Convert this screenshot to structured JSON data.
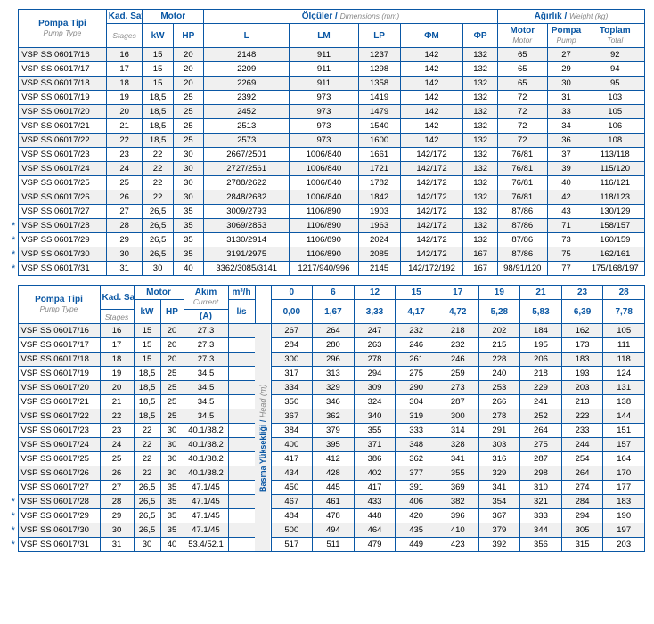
{
  "colors": {
    "brand": "#0a57a4",
    "zebra": "#f0f0f0",
    "muted": "#888888"
  },
  "table1": {
    "headers": {
      "pump": {
        "tr": "Pompa Tipi",
        "en": "Pump Type"
      },
      "stages": {
        "tr": "Kad. Sayısı",
        "en": "Stages"
      },
      "motor": "Motor",
      "kw": "kW",
      "hp": "HP",
      "dims": {
        "tr": "Ölçüler",
        "en": "Dimensions (mm)"
      },
      "L": "L",
      "LM": "LM",
      "LP": "LP",
      "FM": "ΦM",
      "FP": "ΦP",
      "weight": {
        "tr": "Ağırlık",
        "en": "Weight (kg)"
      },
      "wmotor": {
        "tr": "Motor",
        "en": "Motor"
      },
      "wpump": {
        "tr": "Pompa",
        "en": "Pump"
      },
      "wtot": {
        "tr": "Toplam",
        "en": "Total"
      }
    },
    "rows": [
      {
        "star": "",
        "model": "VSP SS 06017/16",
        "st": "16",
        "kw": "15",
        "hp": "20",
        "L": "2148",
        "LM": "911",
        "LP": "1237",
        "FM": "142",
        "FP": "132",
        "wm": "65",
        "wp": "27",
        "wt": "92"
      },
      {
        "star": "",
        "model": "VSP SS 06017/17",
        "st": "17",
        "kw": "15",
        "hp": "20",
        "L": "2209",
        "LM": "911",
        "LP": "1298",
        "FM": "142",
        "FP": "132",
        "wm": "65",
        "wp": "29",
        "wt": "94"
      },
      {
        "star": "",
        "model": "VSP SS 06017/18",
        "st": "18",
        "kw": "15",
        "hp": "20",
        "L": "2269",
        "LM": "911",
        "LP": "1358",
        "FM": "142",
        "FP": "132",
        "wm": "65",
        "wp": "30",
        "wt": "95"
      },
      {
        "star": "",
        "model": "VSP SS 06017/19",
        "st": "19",
        "kw": "18,5",
        "hp": "25",
        "L": "2392",
        "LM": "973",
        "LP": "1419",
        "FM": "142",
        "FP": "132",
        "wm": "72",
        "wp": "31",
        "wt": "103"
      },
      {
        "star": "",
        "model": "VSP SS 06017/20",
        "st": "20",
        "kw": "18,5",
        "hp": "25",
        "L": "2452",
        "LM": "973",
        "LP": "1479",
        "FM": "142",
        "FP": "132",
        "wm": "72",
        "wp": "33",
        "wt": "105"
      },
      {
        "star": "",
        "model": "VSP SS 06017/21",
        "st": "21",
        "kw": "18,5",
        "hp": "25",
        "L": "2513",
        "LM": "973",
        "LP": "1540",
        "FM": "142",
        "FP": "132",
        "wm": "72",
        "wp": "34",
        "wt": "106"
      },
      {
        "star": "",
        "model": "VSP SS 06017/22",
        "st": "22",
        "kw": "18,5",
        "hp": "25",
        "L": "2573",
        "LM": "973",
        "LP": "1600",
        "FM": "142",
        "FP": "132",
        "wm": "72",
        "wp": "36",
        "wt": "108"
      },
      {
        "star": "",
        "model": "VSP SS 06017/23",
        "st": "23",
        "kw": "22",
        "hp": "30",
        "L": "2667/2501",
        "LM": "1006/840",
        "LP": "1661",
        "FM": "142/172",
        "FP": "132",
        "wm": "76/81",
        "wp": "37",
        "wt": "113/118"
      },
      {
        "star": "",
        "model": "VSP SS 06017/24",
        "st": "24",
        "kw": "22",
        "hp": "30",
        "L": "2727/2561",
        "LM": "1006/840",
        "LP": "1721",
        "FM": "142/172",
        "FP": "132",
        "wm": "76/81",
        "wp": "39",
        "wt": "115/120"
      },
      {
        "star": "",
        "model": "VSP SS 06017/25",
        "st": "25",
        "kw": "22",
        "hp": "30",
        "L": "2788/2622",
        "LM": "1006/840",
        "LP": "1782",
        "FM": "142/172",
        "FP": "132",
        "wm": "76/81",
        "wp": "40",
        "wt": "116/121"
      },
      {
        "star": "",
        "model": "VSP SS 06017/26",
        "st": "26",
        "kw": "22",
        "hp": "30",
        "L": "2848/2682",
        "LM": "1006/840",
        "LP": "1842",
        "FM": "142/172",
        "FP": "132",
        "wm": "76/81",
        "wp": "42",
        "wt": "118/123"
      },
      {
        "star": "",
        "model": "VSP SS 06017/27",
        "st": "27",
        "kw": "26,5",
        "hp": "35",
        "L": "3009/2793",
        "LM": "1106/890",
        "LP": "1903",
        "FM": "142/172",
        "FP": "132",
        "wm": "87/86",
        "wp": "43",
        "wt": "130/129"
      },
      {
        "star": "*",
        "model": "VSP SS 06017/28",
        "st": "28",
        "kw": "26,5",
        "hp": "35",
        "L": "3069/2853",
        "LM": "1106/890",
        "LP": "1963",
        "FM": "142/172",
        "FP": "132",
        "wm": "87/86",
        "wp": "71",
        "wt": "158/157"
      },
      {
        "star": "*",
        "model": "VSP SS 06017/29",
        "st": "29",
        "kw": "26,5",
        "hp": "35",
        "L": "3130/2914",
        "LM": "1106/890",
        "LP": "2024",
        "FM": "142/172",
        "FP": "132",
        "wm": "87/86",
        "wp": "73",
        "wt": "160/159"
      },
      {
        "star": "*",
        "model": "VSP SS 06017/30",
        "st": "30",
        "kw": "26,5",
        "hp": "35",
        "L": "3191/2975",
        "LM": "1106/890",
        "LP": "2085",
        "FM": "142/172",
        "FP": "167",
        "wm": "87/86",
        "wp": "75",
        "wt": "162/161"
      },
      {
        "star": "*",
        "model": "VSP SS 06017/31",
        "st": "31",
        "kw": "30",
        "hp": "40",
        "L": "3362/3085/3141",
        "LM": "1217/940/996",
        "LP": "2145",
        "FM": "142/172/192",
        "FP": "167",
        "wm": "98/91/120",
        "wp": "77",
        "wt": "175/168/197"
      }
    ]
  },
  "table2": {
    "headers": {
      "pump": {
        "tr": "Pompa Tipi",
        "en": "Pump Type"
      },
      "stages": {
        "tr": "Kad. Sayısı",
        "en": "Stages"
      },
      "motor": "Motor",
      "kw": "kW",
      "hp": "HP",
      "current": {
        "tr": "Akım",
        "en": "Current",
        "unit": "(A)"
      },
      "m3h": "m³/h",
      "ls": "l/s",
      "head": {
        "tr": "Basma Yüksekliği",
        "en": "Head (m)"
      },
      "cols_m3h": [
        "0",
        "6",
        "12",
        "15",
        "17",
        "19",
        "21",
        "23",
        "28"
      ],
      "cols_ls": [
        "0,00",
        "1,67",
        "3,33",
        "4,17",
        "4,72",
        "5,28",
        "5,83",
        "6,39",
        "7,78"
      ]
    },
    "rows": [
      {
        "star": "",
        "model": "VSP SS 06017/16",
        "st": "16",
        "kw": "15",
        "hp": "20",
        "A": "27.3",
        "v": [
          "267",
          "264",
          "247",
          "232",
          "218",
          "202",
          "184",
          "162",
          "105"
        ]
      },
      {
        "star": "",
        "model": "VSP SS 06017/17",
        "st": "17",
        "kw": "15",
        "hp": "20",
        "A": "27.3",
        "v": [
          "284",
          "280",
          "263",
          "246",
          "232",
          "215",
          "195",
          "173",
          "111"
        ]
      },
      {
        "star": "",
        "model": "VSP SS 06017/18",
        "st": "18",
        "kw": "15",
        "hp": "20",
        "A": "27.3",
        "v": [
          "300",
          "296",
          "278",
          "261",
          "246",
          "228",
          "206",
          "183",
          "118"
        ]
      },
      {
        "star": "",
        "model": "VSP SS 06017/19",
        "st": "19",
        "kw": "18,5",
        "hp": "25",
        "A": "34.5",
        "v": [
          "317",
          "313",
          "294",
          "275",
          "259",
          "240",
          "218",
          "193",
          "124"
        ]
      },
      {
        "star": "",
        "model": "VSP SS 06017/20",
        "st": "20",
        "kw": "18,5",
        "hp": "25",
        "A": "34.5",
        "v": [
          "334",
          "329",
          "309",
          "290",
          "273",
          "253",
          "229",
          "203",
          "131"
        ]
      },
      {
        "star": "",
        "model": "VSP SS 06017/21",
        "st": "21",
        "kw": "18,5",
        "hp": "25",
        "A": "34.5",
        "v": [
          "350",
          "346",
          "324",
          "304",
          "287",
          "266",
          "241",
          "213",
          "138"
        ]
      },
      {
        "star": "",
        "model": "VSP SS 06017/22",
        "st": "22",
        "kw": "18,5",
        "hp": "25",
        "A": "34.5",
        "v": [
          "367",
          "362",
          "340",
          "319",
          "300",
          "278",
          "252",
          "223",
          "144"
        ]
      },
      {
        "star": "",
        "model": "VSP SS 06017/23",
        "st": "23",
        "kw": "22",
        "hp": "30",
        "A": "40.1/38.2",
        "v": [
          "384",
          "379",
          "355",
          "333",
          "314",
          "291",
          "264",
          "233",
          "151"
        ]
      },
      {
        "star": "",
        "model": "VSP SS 06017/24",
        "st": "24",
        "kw": "22",
        "hp": "30",
        "A": "40.1/38.2",
        "v": [
          "400",
          "395",
          "371",
          "348",
          "328",
          "303",
          "275",
          "244",
          "157"
        ]
      },
      {
        "star": "",
        "model": "VSP SS 06017/25",
        "st": "25",
        "kw": "22",
        "hp": "30",
        "A": "40.1/38.2",
        "v": [
          "417",
          "412",
          "386",
          "362",
          "341",
          "316",
          "287",
          "254",
          "164"
        ]
      },
      {
        "star": "",
        "model": "VSP SS 06017/26",
        "st": "26",
        "kw": "22",
        "hp": "30",
        "A": "40.1/38.2",
        "v": [
          "434",
          "428",
          "402",
          "377",
          "355",
          "329",
          "298",
          "264",
          "170"
        ]
      },
      {
        "star": "",
        "model": "VSP SS 06017/27",
        "st": "27",
        "kw": "26,5",
        "hp": "35",
        "A": "47.1/45",
        "v": [
          "450",
          "445",
          "417",
          "391",
          "369",
          "341",
          "310",
          "274",
          "177"
        ]
      },
      {
        "star": "*",
        "model": "VSP SS 06017/28",
        "st": "28",
        "kw": "26,5",
        "hp": "35",
        "A": "47.1/45",
        "v": [
          "467",
          "461",
          "433",
          "406",
          "382",
          "354",
          "321",
          "284",
          "183"
        ]
      },
      {
        "star": "*",
        "model": "VSP SS 06017/29",
        "st": "29",
        "kw": "26,5",
        "hp": "35",
        "A": "47.1/45",
        "v": [
          "484",
          "478",
          "448",
          "420",
          "396",
          "367",
          "333",
          "294",
          "190"
        ]
      },
      {
        "star": "*",
        "model": "VSP SS 06017/30",
        "st": "30",
        "kw": "26,5",
        "hp": "35",
        "A": "47.1/45",
        "v": [
          "500",
          "494",
          "464",
          "435",
          "410",
          "379",
          "344",
          "305",
          "197"
        ]
      },
      {
        "star": "*",
        "model": "VSP SS 06017/31",
        "st": "31",
        "kw": "30",
        "hp": "40",
        "A": "53.4/52.1",
        "v": [
          "517",
          "511",
          "479",
          "449",
          "423",
          "392",
          "356",
          "315",
          "203"
        ]
      }
    ]
  }
}
